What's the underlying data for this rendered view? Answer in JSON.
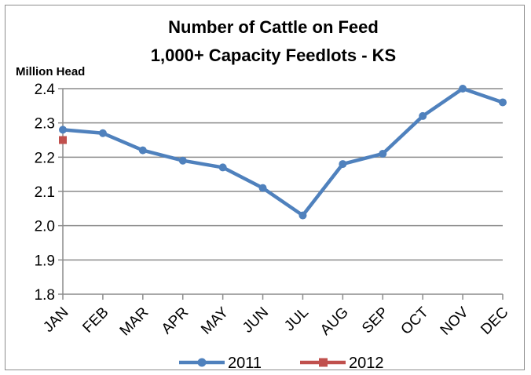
{
  "chart_data": {
    "type": "line",
    "title": [
      "Number of Cattle on Feed",
      "1,000+ Capacity  Feedlots - KS"
    ],
    "ylabel": "Million Head",
    "xlabel": "",
    "categories": [
      "JAN",
      "FEB",
      "MAR",
      "APR",
      "MAY",
      "JUN",
      "JUL",
      "AUG",
      "SEP",
      "OCT",
      "NOV",
      "DEC"
    ],
    "ylim": [
      1.8,
      2.4
    ],
    "yticks": [
      "1.8",
      "1.9",
      "2.0",
      "2.1",
      "2.2",
      "2.3",
      "2.4"
    ],
    "grid": true,
    "legend_position": "bottom",
    "series": [
      {
        "name": "2011",
        "color": "#4f81bd",
        "marker": "circle",
        "values": [
          2.28,
          2.27,
          2.22,
          2.19,
          2.17,
          2.11,
          2.03,
          2.18,
          2.21,
          2.32,
          2.4,
          2.36
        ]
      },
      {
        "name": "2012",
        "color": "#c0504d",
        "marker": "square",
        "values": [
          2.25,
          null,
          null,
          null,
          null,
          null,
          null,
          null,
          null,
          null,
          null,
          null
        ]
      }
    ]
  }
}
